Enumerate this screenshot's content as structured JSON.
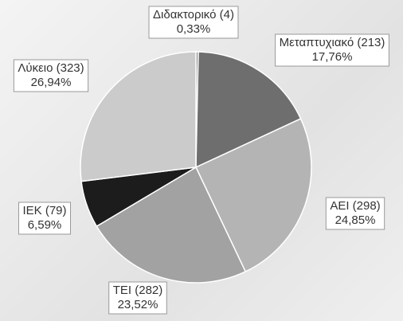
{
  "chart_data": {
    "type": "pie",
    "categories": [
      "Διδακτορικό (4)",
      "Μεταπτυχιακό (213)",
      "ΑΕΙ (298)",
      "ΤΕΙ (282)",
      "ΙΕΚ (79)",
      "Λύκειο (323)"
    ],
    "values": [
      0.33,
      17.76,
      24.85,
      23.52,
      6.59,
      26.94
    ],
    "value_labels": [
      "0,33%",
      "17,76%",
      "24,85%",
      "23,52%",
      "6,59%",
      "26,94%"
    ],
    "colors": [
      "#8a8a8a",
      "#6e6e6e",
      "#b4b4b4",
      "#a2a2a2",
      "#1c1c1c",
      "#cbcbcb"
    ]
  }
}
